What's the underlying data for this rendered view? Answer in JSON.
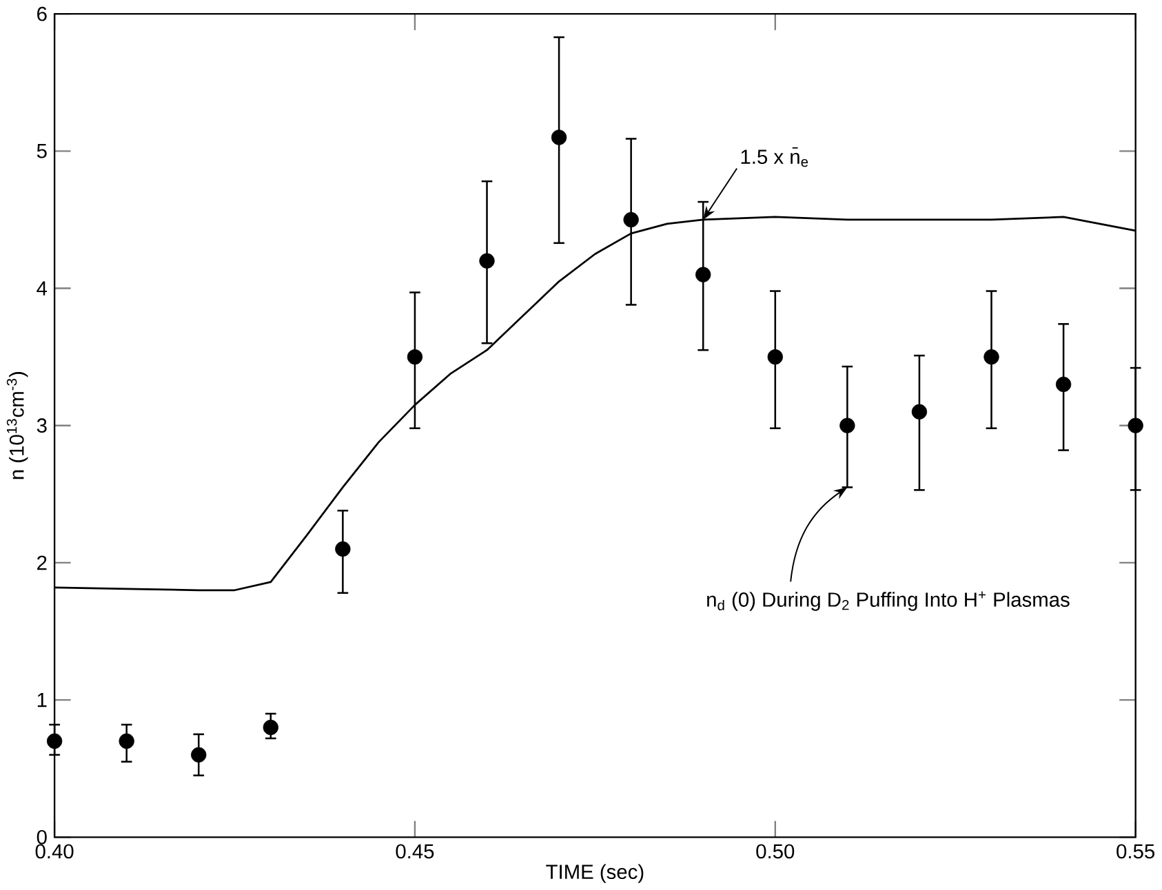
{
  "chart_data": {
    "type": "scatter",
    "xlabel": "TIME (sec)",
    "ylabel": "n (10$^{13}$cm$^{-3}$)",
    "xlim": [
      0.4,
      0.55
    ],
    "ylim": [
      0,
      6
    ],
    "xticks": [
      {
        "value": 0.4,
        "label": "0.40"
      },
      {
        "value": 0.45,
        "label": "0.45"
      },
      {
        "value": 0.5,
        "label": "0.50"
      },
      {
        "value": 0.55,
        "label": "0.55"
      }
    ],
    "yticks": [
      0,
      1,
      2,
      3,
      4,
      5,
      6
    ],
    "grid": false,
    "x": [
      0.4,
      0.41,
      0.42,
      0.43,
      0.44,
      0.45,
      0.46,
      0.47,
      0.48,
      0.49,
      0.5,
      0.51,
      0.52,
      0.53,
      0.54,
      0.55
    ],
    "series": [
      {
        "type": "scatter",
        "marker": "circle",
        "color": "#000000",
        "values": [
          0.7,
          0.7,
          0.6,
          0.8,
          2.1,
          3.5,
          4.2,
          5.1,
          4.5,
          4.1,
          3.5,
          3.0,
          3.1,
          3.5,
          3.3,
          3.0
        ],
        "errors": [
          [
            0.6,
            0.82
          ],
          [
            0.55,
            0.82
          ],
          [
            0.45,
            0.75
          ],
          [
            0.72,
            0.9
          ],
          [
            1.78,
            2.38
          ],
          [
            2.98,
            3.97
          ],
          [
            3.6,
            4.78
          ],
          [
            4.33,
            5.83
          ],
          [
            3.88,
            5.09
          ],
          [
            3.55,
            4.63
          ],
          [
            2.98,
            3.98
          ],
          [
            2.55,
            3.43
          ],
          [
            2.53,
            3.51
          ],
          [
            2.98,
            3.98
          ],
          [
            2.82,
            3.74
          ],
          [
            2.53,
            3.42
          ]
        ]
      },
      {
        "type": "line",
        "color": "#000000",
        "marker": "none",
        "line_style": "solid",
        "x": [
          0.4,
          0.41,
          0.42,
          0.425,
          0.43,
          0.435,
          0.44,
          0.445,
          0.45,
          0.455,
          0.46,
          0.465,
          0.47,
          0.475,
          0.48,
          0.485,
          0.49,
          0.5,
          0.51,
          0.52,
          0.53,
          0.54,
          0.55
        ],
        "values": [
          1.82,
          1.81,
          1.8,
          1.8,
          1.86,
          2.2,
          2.55,
          2.88,
          3.15,
          3.38,
          3.55,
          3.8,
          4.05,
          4.25,
          4.4,
          4.47,
          4.5,
          4.52,
          4.5,
          4.5,
          4.5,
          4.52,
          4.42
        ]
      }
    ],
    "annotations": [
      {
        "text": "1.5 x n̄$_{e}$",
        "x": 0.49,
        "y": 4.5
      },
      {
        "text": "n$_{d}$ (0) During D$_{2}$ Puffing Into H$^{+}$ Plasmas",
        "x": 0.51,
        "y": 2.55
      }
    ]
  }
}
